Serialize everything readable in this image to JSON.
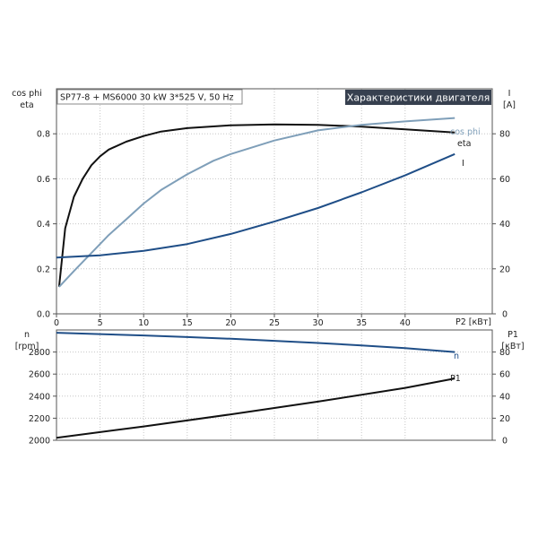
{
  "info_label": "SP77-8 + MS6000   30 kW   3*525 V, 50 Hz",
  "title": "Характеристики двигателя",
  "colors": {
    "eta": "#111111",
    "cosphi": "#7f9fb9",
    "current": "#1f4e87",
    "speed": "#1f4e87",
    "p1": "#111111",
    "title_bg": "#37404f"
  },
  "chart_data": [
    {
      "type": "line",
      "name": "motor-efficiency-chart",
      "xlabel": "P2 [кВт]",
      "ylabel_left": [
        "cos phi",
        "eta"
      ],
      "ylabel_right": [
        "I",
        "[A]"
      ],
      "xlim": [
        0,
        50
      ],
      "ylim_left": [
        0,
        1.0
      ],
      "ylim_right": [
        0,
        100
      ],
      "x_ticks": [
        0,
        5,
        10,
        15,
        20,
        25,
        30,
        35,
        40
      ],
      "y_ticks_left": [
        0.0,
        0.2,
        0.4,
        0.6,
        0.8
      ],
      "y_ticks_left_labels": [
        "0.0",
        "0.2",
        "0.4",
        "0.6",
        "0.8"
      ],
      "y_ticks_right": [
        0,
        20,
        40,
        60,
        80
      ],
      "grid": true,
      "series": [
        {
          "name": "eta",
          "axis": "left",
          "x": [
            0.3,
            1,
            2,
            3,
            4,
            5,
            6,
            8,
            10,
            12,
            15,
            20,
            25,
            30,
            35,
            40,
            45.7
          ],
          "y": [
            0.12,
            0.38,
            0.52,
            0.6,
            0.66,
            0.7,
            0.73,
            0.765,
            0.79,
            0.81,
            0.825,
            0.838,
            0.842,
            0.84,
            0.832,
            0.82,
            0.806
          ]
        },
        {
          "name": "cos phi",
          "axis": "left",
          "x": [
            0.3,
            2,
            4,
            6,
            8,
            10,
            12,
            15,
            18,
            20,
            25,
            30,
            35,
            40,
            45.7
          ],
          "y": [
            0.12,
            0.19,
            0.27,
            0.35,
            0.42,
            0.49,
            0.55,
            0.62,
            0.68,
            0.71,
            0.77,
            0.815,
            0.84,
            0.855,
            0.87
          ]
        },
        {
          "name": "I",
          "axis": "right",
          "x": [
            0,
            5,
            10,
            15,
            20,
            25,
            30,
            35,
            40,
            45.7
          ],
          "y": [
            25,
            26,
            28,
            31,
            35.5,
            41,
            47,
            54,
            61.5,
            71
          ]
        }
      ]
    },
    {
      "type": "line",
      "name": "motor-speed-power-chart",
      "ylabel_left": [
        "n",
        "[rpm]"
      ],
      "ylabel_right": [
        "P1",
        "[кВт]"
      ],
      "xlim": [
        0,
        50
      ],
      "ylim_left": [
        2000,
        3000
      ],
      "ylim_right": [
        0,
        100
      ],
      "y_ticks_left": [
        2000,
        2200,
        2400,
        2600,
        2800
      ],
      "y_ticks_right": [
        0,
        20,
        40,
        60,
        80
      ],
      "grid": true,
      "series": [
        {
          "name": "n",
          "axis": "left",
          "x": [
            0,
            5,
            10,
            15,
            20,
            25,
            30,
            35,
            40,
            45.7
          ],
          "y": [
            2975,
            2963,
            2950,
            2936,
            2920,
            2902,
            2882,
            2860,
            2835,
            2800
          ]
        },
        {
          "name": "P1",
          "axis": "right",
          "x": [
            0,
            10,
            20,
            30,
            40,
            45.7
          ],
          "y": [
            2.3,
            12.5,
            23.5,
            35,
            47.5,
            56
          ]
        }
      ]
    }
  ]
}
